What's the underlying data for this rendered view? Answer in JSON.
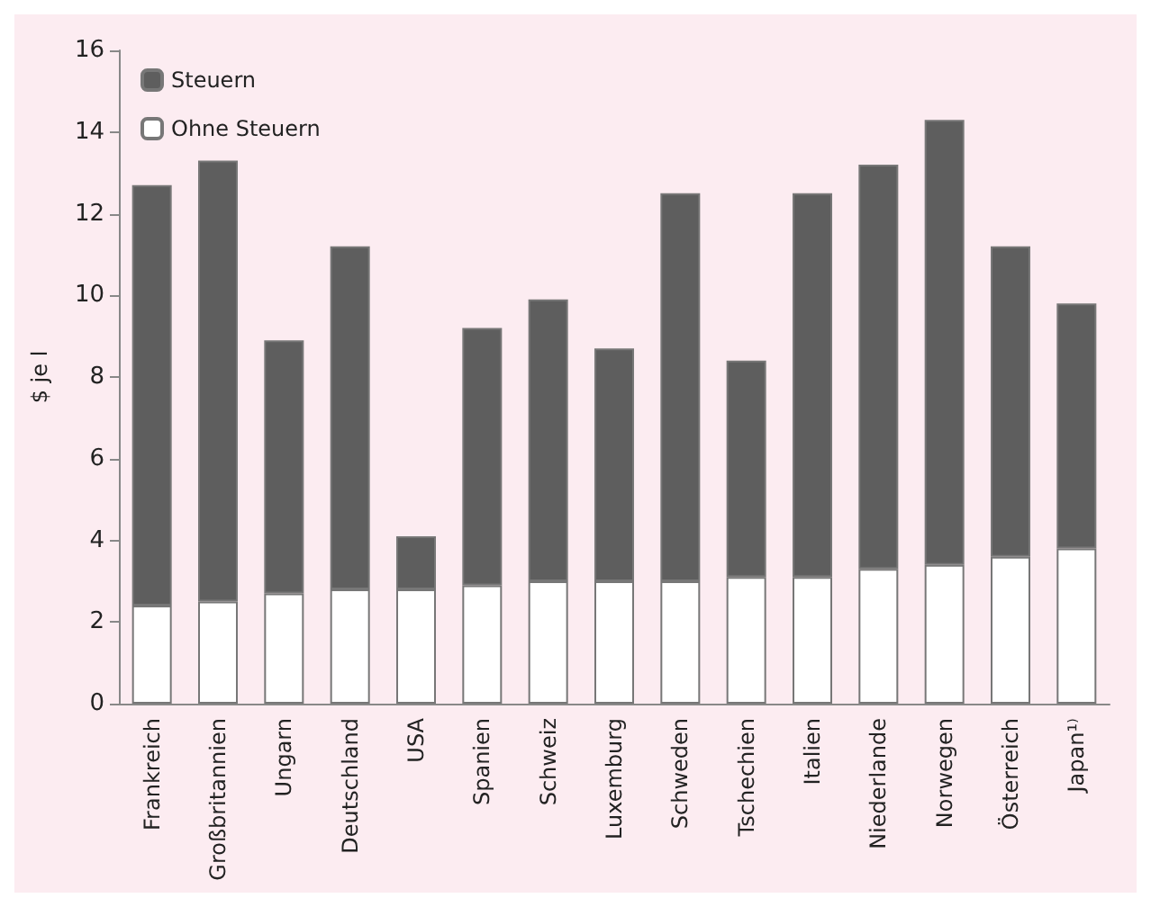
{
  "chart_data": {
    "type": "bar",
    "stacked": true,
    "ylabel": "$ je l",
    "categories": [
      "Frankreich",
      "Großbritannien",
      "Ungarn",
      "Deutschland",
      "USA",
      "Spanien",
      "Schweiz",
      "Luxemburg",
      "Schweden",
      "Tschechien",
      "Italien",
      "Niederlande",
      "Norwegen",
      "Österreich",
      "Japan¹⁾"
    ],
    "series": [
      {
        "name": "Ohne Steuern",
        "color": "#ffffff",
        "values": [
          2.4,
          2.5,
          2.7,
          2.8,
          2.8,
          2.9,
          3.0,
          3.0,
          3.0,
          3.1,
          3.1,
          3.3,
          3.4,
          3.6,
          3.8
        ]
      },
      {
        "name": "Steuern",
        "color": "#5e5e5e",
        "values": [
          10.3,
          10.8,
          6.2,
          8.4,
          1.3,
          6.3,
          6.9,
          5.7,
          9.5,
          5.3,
          9.4,
          9.9,
          10.9,
          7.6,
          6.0
        ]
      }
    ],
    "ylim": [
      0,
      16
    ],
    "yticks": [
      0,
      2,
      4,
      6,
      8,
      10,
      12,
      14,
      16
    ],
    "grid": false,
    "legend": "top left"
  }
}
